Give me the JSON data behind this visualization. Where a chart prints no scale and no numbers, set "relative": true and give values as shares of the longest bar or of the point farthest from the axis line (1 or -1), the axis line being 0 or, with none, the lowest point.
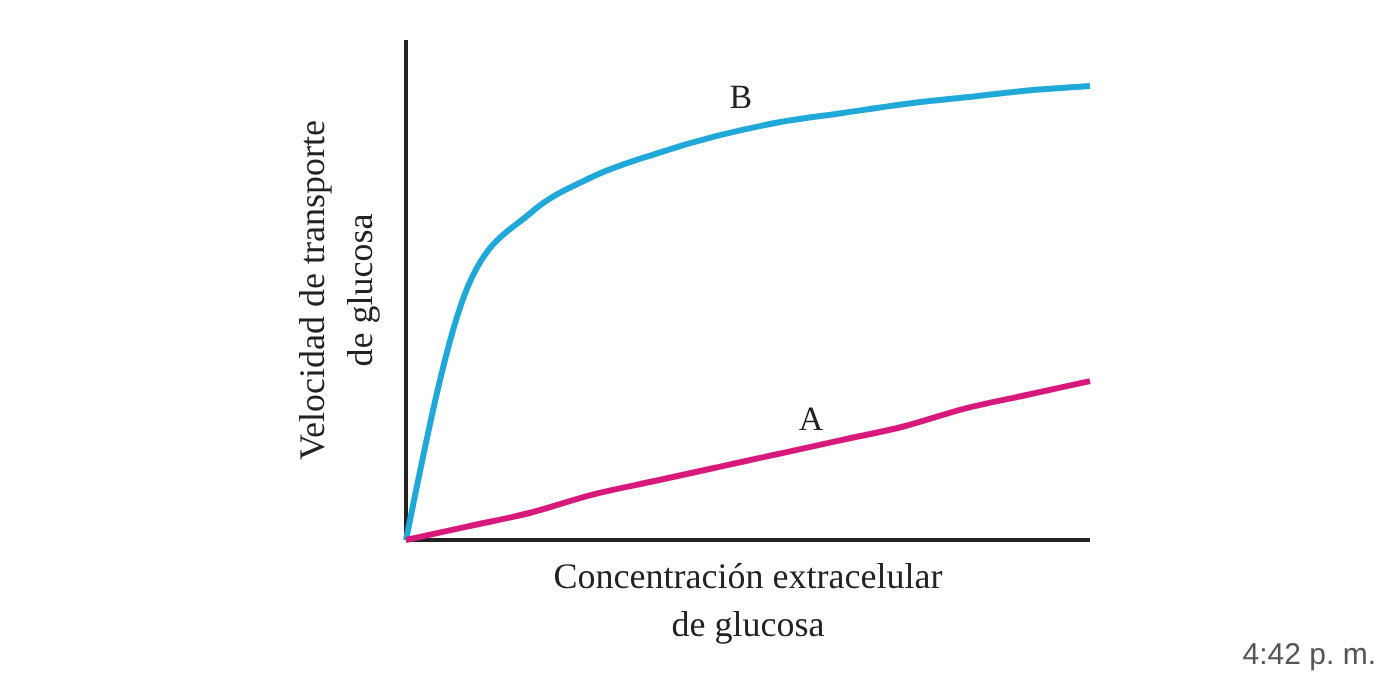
{
  "chart_data": {
    "type": "line",
    "relative": true,
    "xlabel": "Concentración extracelular\nde glucosa",
    "ylabel": "Velocidad de transporte\nde glucosa",
    "categories": [
      null,
      null,
      null,
      null,
      null,
      null,
      null,
      null,
      null,
      null,
      null,
      null
    ],
    "series": [
      {
        "name": "B",
        "color": "#1fa8d8",
        "values": [
          0,
          0.56,
          0.72,
          0.8,
          0.85,
          0.89,
          0.92,
          0.94,
          0.96,
          0.975,
          0.99,
          1.0
        ]
      },
      {
        "name": "A",
        "color": "#d6197a",
        "values": [
          0,
          0.03,
          0.06,
          0.1,
          0.13,
          0.16,
          0.19,
          0.22,
          0.25,
          0.29,
          0.32,
          0.35
        ]
      }
    ],
    "annotations": [
      "4:42 p. m."
    ],
    "marker": "none",
    "line_style": "solid"
  }
}
